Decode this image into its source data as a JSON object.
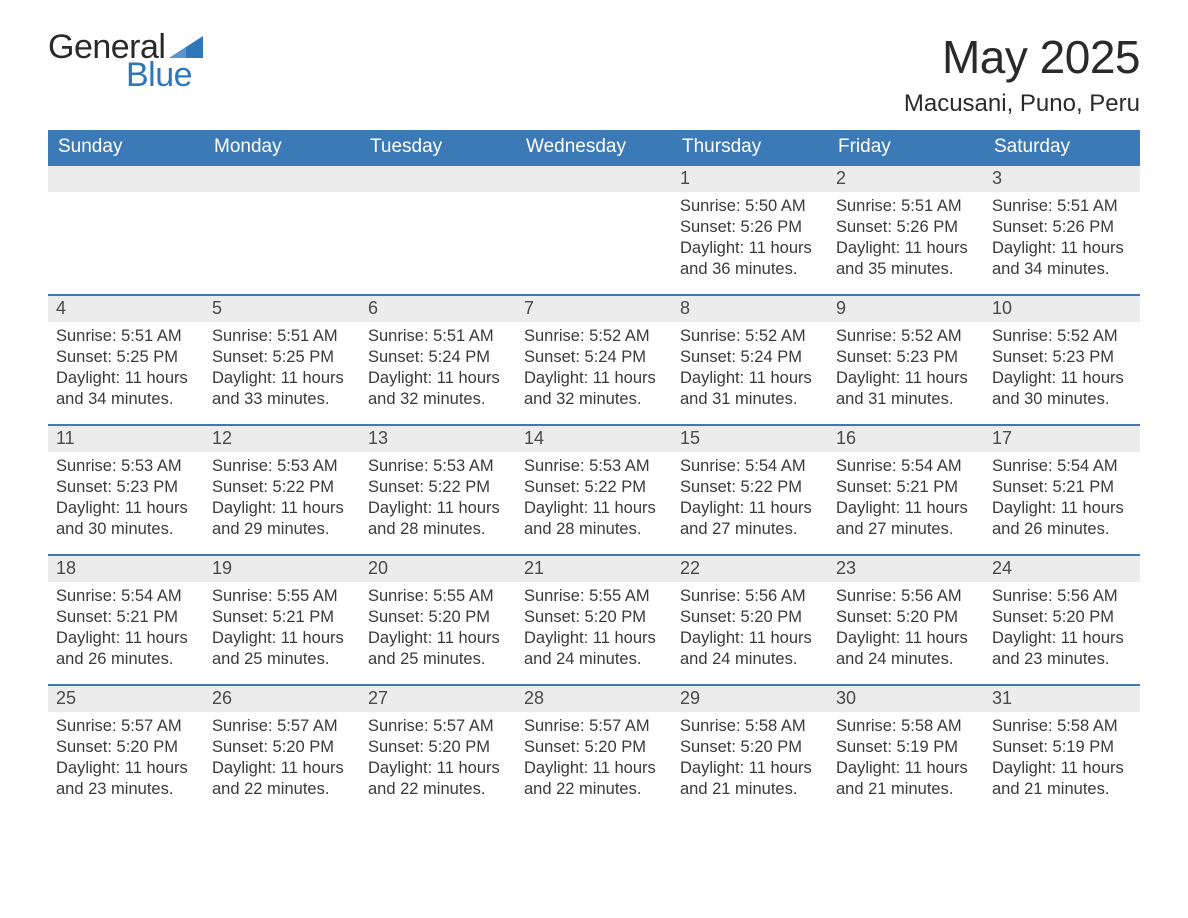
{
  "logo": {
    "word1": "General",
    "word2": "Blue",
    "shape_color": "#2f77bb"
  },
  "title": "May 2025",
  "location": "Macusani, Puno, Peru",
  "colors": {
    "header_bg": "#3b79b7",
    "header_text": "#ffffff",
    "daynum_bg": "#ececec",
    "daynum_text": "#4a4a4a",
    "body_text": "#3a3a3a",
    "row_border": "#3b79b7",
    "page_bg": "#ffffff"
  },
  "fonts": {
    "title_size_pt": 34,
    "location_size_pt": 18,
    "header_size_pt": 14,
    "daynum_size_pt": 13,
    "body_size_pt": 12
  },
  "weekdays": [
    "Sunday",
    "Monday",
    "Tuesday",
    "Wednesday",
    "Thursday",
    "Friday",
    "Saturday"
  ],
  "weeks": [
    [
      null,
      null,
      null,
      null,
      {
        "n": "1",
        "sr": "5:50 AM",
        "ss": "5:26 PM",
        "dl": "11 hours and 36 minutes."
      },
      {
        "n": "2",
        "sr": "5:51 AM",
        "ss": "5:26 PM",
        "dl": "11 hours and 35 minutes."
      },
      {
        "n": "3",
        "sr": "5:51 AM",
        "ss": "5:26 PM",
        "dl": "11 hours and 34 minutes."
      }
    ],
    [
      {
        "n": "4",
        "sr": "5:51 AM",
        "ss": "5:25 PM",
        "dl": "11 hours and 34 minutes."
      },
      {
        "n": "5",
        "sr": "5:51 AM",
        "ss": "5:25 PM",
        "dl": "11 hours and 33 minutes."
      },
      {
        "n": "6",
        "sr": "5:51 AM",
        "ss": "5:24 PM",
        "dl": "11 hours and 32 minutes."
      },
      {
        "n": "7",
        "sr": "5:52 AM",
        "ss": "5:24 PM",
        "dl": "11 hours and 32 minutes."
      },
      {
        "n": "8",
        "sr": "5:52 AM",
        "ss": "5:24 PM",
        "dl": "11 hours and 31 minutes."
      },
      {
        "n": "9",
        "sr": "5:52 AM",
        "ss": "5:23 PM",
        "dl": "11 hours and 31 minutes."
      },
      {
        "n": "10",
        "sr": "5:52 AM",
        "ss": "5:23 PM",
        "dl": "11 hours and 30 minutes."
      }
    ],
    [
      {
        "n": "11",
        "sr": "5:53 AM",
        "ss": "5:23 PM",
        "dl": "11 hours and 30 minutes."
      },
      {
        "n": "12",
        "sr": "5:53 AM",
        "ss": "5:22 PM",
        "dl": "11 hours and 29 minutes."
      },
      {
        "n": "13",
        "sr": "5:53 AM",
        "ss": "5:22 PM",
        "dl": "11 hours and 28 minutes."
      },
      {
        "n": "14",
        "sr": "5:53 AM",
        "ss": "5:22 PM",
        "dl": "11 hours and 28 minutes."
      },
      {
        "n": "15",
        "sr": "5:54 AM",
        "ss": "5:22 PM",
        "dl": "11 hours and 27 minutes."
      },
      {
        "n": "16",
        "sr": "5:54 AM",
        "ss": "5:21 PM",
        "dl": "11 hours and 27 minutes."
      },
      {
        "n": "17",
        "sr": "5:54 AM",
        "ss": "5:21 PM",
        "dl": "11 hours and 26 minutes."
      }
    ],
    [
      {
        "n": "18",
        "sr": "5:54 AM",
        "ss": "5:21 PM",
        "dl": "11 hours and 26 minutes."
      },
      {
        "n": "19",
        "sr": "5:55 AM",
        "ss": "5:21 PM",
        "dl": "11 hours and 25 minutes."
      },
      {
        "n": "20",
        "sr": "5:55 AM",
        "ss": "5:20 PM",
        "dl": "11 hours and 25 minutes."
      },
      {
        "n": "21",
        "sr": "5:55 AM",
        "ss": "5:20 PM",
        "dl": "11 hours and 24 minutes."
      },
      {
        "n": "22",
        "sr": "5:56 AM",
        "ss": "5:20 PM",
        "dl": "11 hours and 24 minutes."
      },
      {
        "n": "23",
        "sr": "5:56 AM",
        "ss": "5:20 PM",
        "dl": "11 hours and 24 minutes."
      },
      {
        "n": "24",
        "sr": "5:56 AM",
        "ss": "5:20 PM",
        "dl": "11 hours and 23 minutes."
      }
    ],
    [
      {
        "n": "25",
        "sr": "5:57 AM",
        "ss": "5:20 PM",
        "dl": "11 hours and 23 minutes."
      },
      {
        "n": "26",
        "sr": "5:57 AM",
        "ss": "5:20 PM",
        "dl": "11 hours and 22 minutes."
      },
      {
        "n": "27",
        "sr": "5:57 AM",
        "ss": "5:20 PM",
        "dl": "11 hours and 22 minutes."
      },
      {
        "n": "28",
        "sr": "5:57 AM",
        "ss": "5:20 PM",
        "dl": "11 hours and 22 minutes."
      },
      {
        "n": "29",
        "sr": "5:58 AM",
        "ss": "5:20 PM",
        "dl": "11 hours and 21 minutes."
      },
      {
        "n": "30",
        "sr": "5:58 AM",
        "ss": "5:19 PM",
        "dl": "11 hours and 21 minutes."
      },
      {
        "n": "31",
        "sr": "5:58 AM",
        "ss": "5:19 PM",
        "dl": "11 hours and 21 minutes."
      }
    ]
  ],
  "labels": {
    "sunrise": "Sunrise: ",
    "sunset": "Sunset: ",
    "daylight": "Daylight: "
  }
}
